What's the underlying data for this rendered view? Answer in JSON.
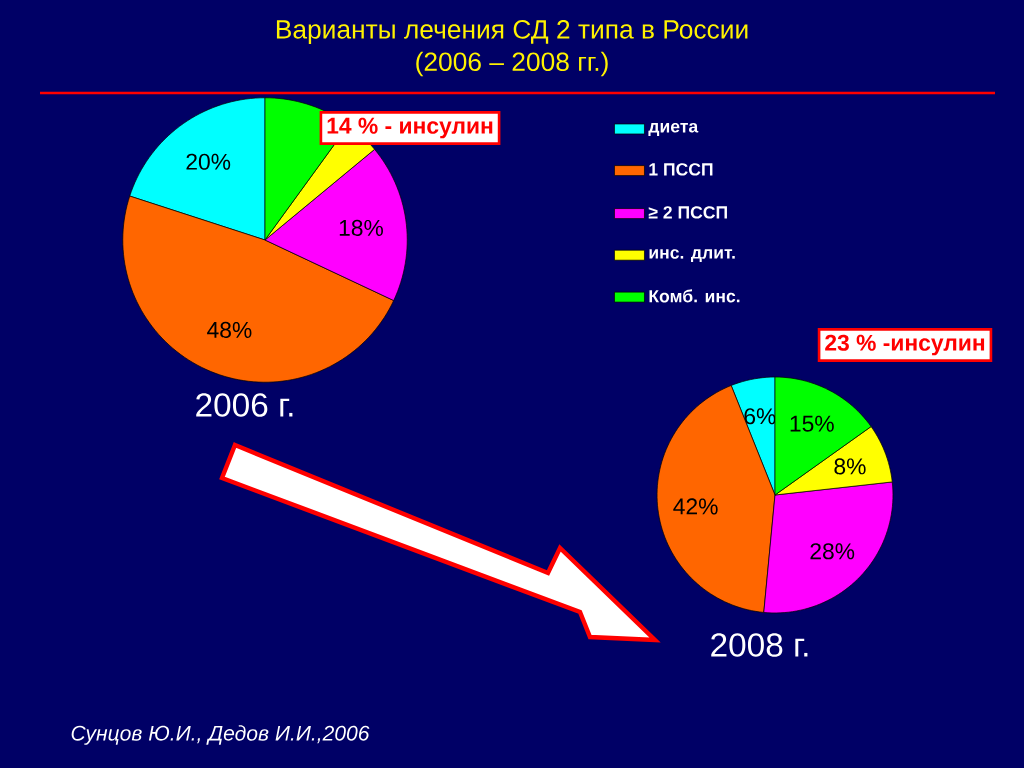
{
  "chart_data": [
    {
      "type": "pie",
      "title": "Варианты лечения СД 2 типа в России",
      "subtitle": "(2006 – 2008 гг.)",
      "categories": [
        "диета",
        "1 ПССП",
        "≥ 2 ПССП",
        "инс. длит.",
        "Комб. инс."
      ],
      "values": [
        20,
        48,
        18,
        4,
        10
      ],
      "value_labels": [
        "20%",
        "48%",
        "18%",
        null,
        null
      ],
      "colors": [
        "#00ffff",
        "#ff6600",
        "#ff00ff",
        "#ffff00",
        "#00ff00"
      ],
      "legend": "right",
      "annotations": [
        "14 % - инсулин",
        "2006 г.",
        "Сунцов Ю.И., Дедов И.И.,2006"
      ]
    },
    {
      "type": "pie",
      "categories": [
        null,
        null,
        null,
        null,
        null
      ],
      "values": [
        6,
        42,
        28,
        8,
        15
      ],
      "value_labels": [
        "6%",
        "42%",
        "28%",
        "8%",
        "15%"
      ],
      "colors": [
        "#00ffff",
        "#ff6600",
        "#ff00ff",
        "#ffff00",
        "#00ff00"
      ],
      "annotations": [
        "23 % -инсулин",
        "2008 г."
      ]
    }
  ]
}
